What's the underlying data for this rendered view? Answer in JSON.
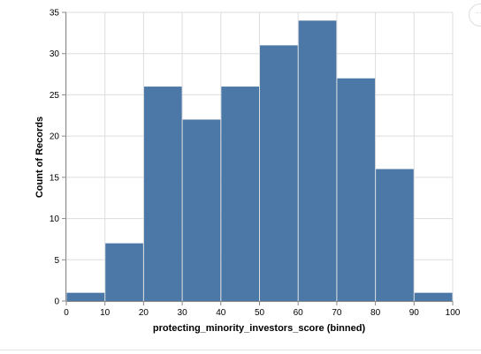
{
  "chart_data": {
    "type": "bar",
    "bins": [
      {
        "x0": 0,
        "x1": 10,
        "count": 1
      },
      {
        "x0": 10,
        "x1": 20,
        "count": 7
      },
      {
        "x0": 20,
        "x1": 30,
        "count": 26
      },
      {
        "x0": 30,
        "x1": 40,
        "count": 22
      },
      {
        "x0": 40,
        "x1": 50,
        "count": 26
      },
      {
        "x0": 50,
        "x1": 60,
        "count": 31
      },
      {
        "x0": 60,
        "x1": 70,
        "count": 34
      },
      {
        "x0": 70,
        "x1": 80,
        "count": 27
      },
      {
        "x0": 80,
        "x1": 90,
        "count": 16
      },
      {
        "x0": 90,
        "x1": 100,
        "count": 1
      }
    ],
    "xlabel": "protecting_minority_investors_score (binned)",
    "ylabel": "Count of Records",
    "xlim": [
      0,
      100
    ],
    "ylim": [
      0,
      35
    ],
    "xticks": [
      0,
      10,
      20,
      30,
      40,
      50,
      60,
      70,
      80,
      90,
      100
    ],
    "yticks": [
      0,
      5,
      10,
      15,
      20,
      25,
      30,
      35
    ],
    "grid": true,
    "bar_color": "#4c78a8"
  },
  "menu": {
    "icon": "more-options-icon",
    "glyph": "···"
  }
}
